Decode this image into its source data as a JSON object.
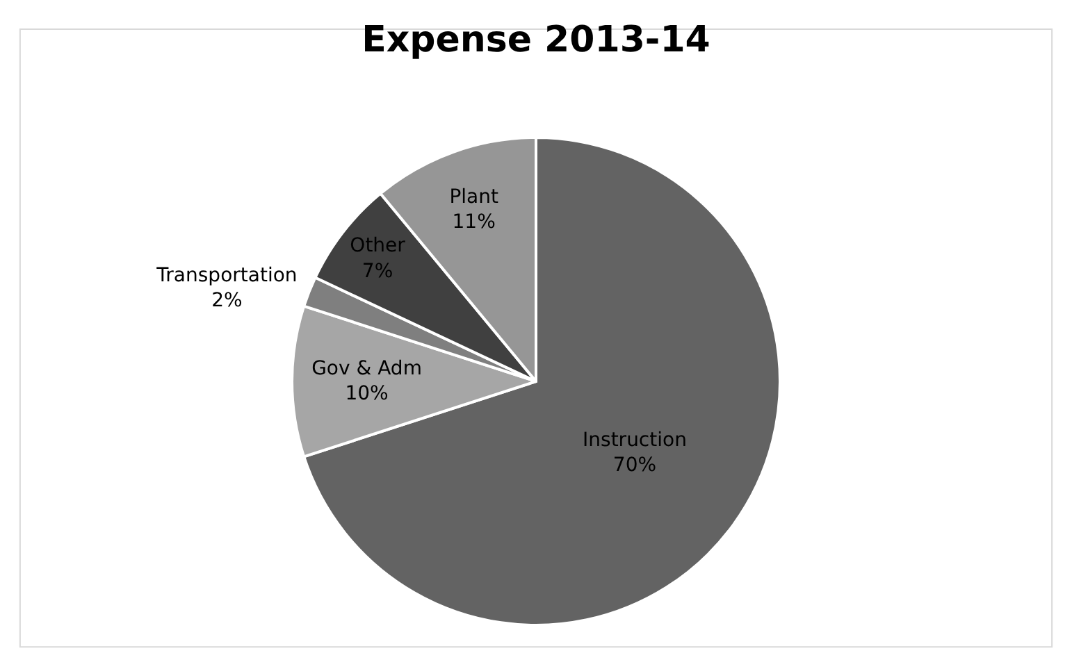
{
  "chart_data": {
    "type": "pie",
    "title": "Expense 2013-14",
    "categories": [
      "Instruction",
      "Gov & Adm",
      "Transportation",
      "Other",
      "Plant"
    ],
    "values": [
      70,
      10,
      2,
      7,
      11
    ],
    "value_labels": [
      "70%",
      "10%",
      "2%",
      "7%",
      "11%"
    ],
    "colors": [
      "#636363",
      "#a6a6a6",
      "#7f7f7f",
      "#404040",
      "#969696"
    ],
    "legend": false
  }
}
